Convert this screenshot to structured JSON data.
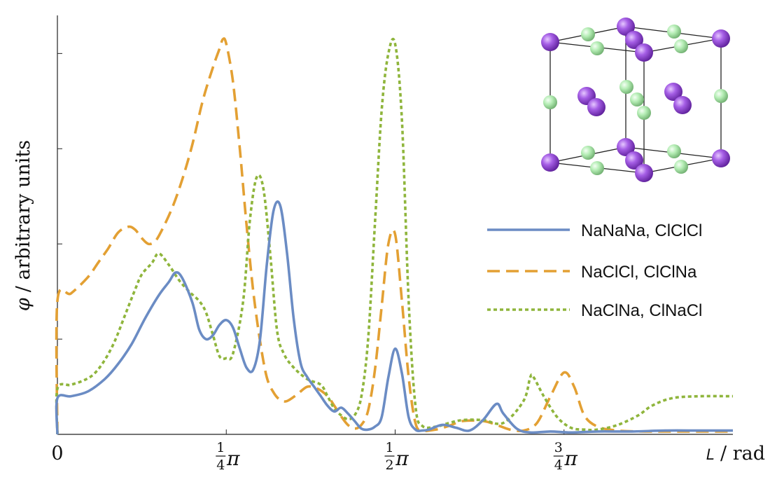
{
  "chart_data": {
    "type": "line",
    "title": "",
    "xlabel": {
      "symbol": "L",
      "unit": "/ rad"
    },
    "ylabel": {
      "symbol": "φ",
      "text": "/ arbitrary units"
    },
    "xlim": [
      0,
      1
    ],
    "ylim": [
      0,
      0.44
    ],
    "x_ticks": [
      {
        "value": 0,
        "whole": "0"
      },
      {
        "value": 0.25,
        "num": "1",
        "den": "4",
        "sym": "π"
      },
      {
        "value": 0.5,
        "num": "1",
        "den": "2",
        "sym": "π"
      },
      {
        "value": 0.75,
        "num": "3",
        "den": "4",
        "sym": "π"
      }
    ],
    "y_ticks": [
      0,
      0.1,
      0.2,
      0.3,
      0.4
    ],
    "grid": false,
    "legend_position": "right",
    "series": [
      {
        "name": "NaNaNa, ClClCl",
        "color": "#6b8cc4",
        "dash": "solid",
        "points": [
          [
            0,
            0.038
          ],
          [
            0.02,
            0.04
          ],
          [
            0.045,
            0.045
          ],
          [
            0.07,
            0.058
          ],
          [
            0.09,
            0.074
          ],
          [
            0.11,
            0.095
          ],
          [
            0.13,
            0.122
          ],
          [
            0.15,
            0.146
          ],
          [
            0.165,
            0.16
          ],
          [
            0.175,
            0.17
          ],
          [
            0.185,
            0.164
          ],
          [
            0.2,
            0.138
          ],
          [
            0.21,
            0.11
          ],
          [
            0.22,
            0.1
          ],
          [
            0.23,
            0.104
          ],
          [
            0.24,
            0.115
          ],
          [
            0.25,
            0.12
          ],
          [
            0.26,
            0.112
          ],
          [
            0.27,
            0.09
          ],
          [
            0.28,
            0.07
          ],
          [
            0.29,
            0.068
          ],
          [
            0.3,
            0.1
          ],
          [
            0.31,
            0.178
          ],
          [
            0.32,
            0.235
          ],
          [
            0.33,
            0.24
          ],
          [
            0.34,
            0.19
          ],
          [
            0.35,
            0.12
          ],
          [
            0.36,
            0.075
          ],
          [
            0.37,
            0.06
          ],
          [
            0.38,
            0.05
          ],
          [
            0.39,
            0.04
          ],
          [
            0.4,
            0.03
          ],
          [
            0.41,
            0.024
          ],
          [
            0.42,
            0.028
          ],
          [
            0.43,
            0.022
          ],
          [
            0.44,
            0.014
          ],
          [
            0.45,
            0.006
          ],
          [
            0.46,
            0.005
          ],
          [
            0.47,
            0.008
          ],
          [
            0.48,
            0.018
          ],
          [
            0.49,
            0.06
          ],
          [
            0.5,
            0.09
          ],
          [
            0.51,
            0.064
          ],
          [
            0.52,
            0.018
          ],
          [
            0.53,
            0.005
          ],
          [
            0.54,
            0.004
          ],
          [
            0.55,
            0.005
          ],
          [
            0.57,
            0.01
          ],
          [
            0.59,
            0.007
          ],
          [
            0.61,
            0.004
          ],
          [
            0.63,
            0.015
          ],
          [
            0.65,
            0.032
          ],
          [
            0.66,
            0.022
          ],
          [
            0.68,
            0.006
          ],
          [
            0.7,
            0.002
          ],
          [
            0.73,
            0.003
          ],
          [
            0.76,
            0.002
          ],
          [
            0.8,
            0.003
          ],
          [
            0.85,
            0.003
          ],
          [
            0.9,
            0.004
          ],
          [
            0.95,
            0.004
          ],
          [
            1.0,
            0.004
          ]
        ]
      },
      {
        "name": "NaClCl, ClClNa",
        "color": "#e3a033",
        "dash": "dashed",
        "points": [
          [
            0,
            0.14
          ],
          [
            0.02,
            0.148
          ],
          [
            0.045,
            0.165
          ],
          [
            0.06,
            0.18
          ],
          [
            0.075,
            0.195
          ],
          [
            0.09,
            0.212
          ],
          [
            0.105,
            0.218
          ],
          [
            0.115,
            0.215
          ],
          [
            0.125,
            0.206
          ],
          [
            0.135,
            0.2
          ],
          [
            0.145,
            0.203
          ],
          [
            0.155,
            0.215
          ],
          [
            0.17,
            0.238
          ],
          [
            0.185,
            0.268
          ],
          [
            0.2,
            0.305
          ],
          [
            0.215,
            0.35
          ],
          [
            0.23,
            0.385
          ],
          [
            0.24,
            0.405
          ],
          [
            0.245,
            0.415
          ],
          [
            0.25,
            0.41
          ],
          [
            0.26,
            0.37
          ],
          [
            0.27,
            0.3
          ],
          [
            0.28,
            0.22
          ],
          [
            0.29,
            0.15
          ],
          [
            0.3,
            0.098
          ],
          [
            0.31,
            0.06
          ],
          [
            0.32,
            0.044
          ],
          [
            0.33,
            0.036
          ],
          [
            0.34,
            0.035
          ],
          [
            0.355,
            0.042
          ],
          [
            0.37,
            0.05
          ],
          [
            0.385,
            0.048
          ],
          [
            0.4,
            0.04
          ],
          [
            0.41,
            0.03
          ],
          [
            0.42,
            0.019
          ],
          [
            0.43,
            0.01
          ],
          [
            0.44,
            0.006
          ],
          [
            0.45,
            0.01
          ],
          [
            0.46,
            0.025
          ],
          [
            0.47,
            0.067
          ],
          [
            0.48,
            0.134
          ],
          [
            0.49,
            0.2
          ],
          [
            0.5,
            0.21
          ],
          [
            0.51,
            0.14
          ],
          [
            0.52,
            0.06
          ],
          [
            0.53,
            0.012
          ],
          [
            0.54,
            0.004
          ],
          [
            0.56,
            0.005
          ],
          [
            0.58,
            0.009
          ],
          [
            0.6,
            0.014
          ],
          [
            0.63,
            0.014
          ],
          [
            0.65,
            0.01
          ],
          [
            0.67,
            0.005
          ],
          [
            0.69,
            0.004
          ],
          [
            0.71,
            0.012
          ],
          [
            0.73,
            0.04
          ],
          [
            0.75,
            0.065
          ],
          [
            0.765,
            0.05
          ],
          [
            0.78,
            0.02
          ],
          [
            0.8,
            0.008
          ],
          [
            0.83,
            0.004
          ],
          [
            0.87,
            0.003
          ],
          [
            0.92,
            0.003
          ],
          [
            1.0,
            0.003
          ]
        ]
      },
      {
        "name": "NaClNa, ClNaCl",
        "color": "#8fb53c",
        "dash": "dotted",
        "points": [
          [
            0,
            0.048
          ],
          [
            0.02,
            0.052
          ],
          [
            0.04,
            0.057
          ],
          [
            0.055,
            0.064
          ],
          [
            0.07,
            0.078
          ],
          [
            0.085,
            0.098
          ],
          [
            0.1,
            0.125
          ],
          [
            0.115,
            0.152
          ],
          [
            0.125,
            0.168
          ],
          [
            0.14,
            0.18
          ],
          [
            0.15,
            0.19
          ],
          [
            0.165,
            0.178
          ],
          [
            0.18,
            0.162
          ],
          [
            0.195,
            0.15
          ],
          [
            0.21,
            0.14
          ],
          [
            0.22,
            0.128
          ],
          [
            0.23,
            0.105
          ],
          [
            0.24,
            0.082
          ],
          [
            0.25,
            0.08
          ],
          [
            0.26,
            0.085
          ],
          [
            0.275,
            0.14
          ],
          [
            0.285,
            0.225
          ],
          [
            0.295,
            0.27
          ],
          [
            0.305,
            0.258
          ],
          [
            0.315,
            0.19
          ],
          [
            0.325,
            0.11
          ],
          [
            0.335,
            0.085
          ],
          [
            0.35,
            0.07
          ],
          [
            0.37,
            0.058
          ],
          [
            0.39,
            0.052
          ],
          [
            0.4,
            0.04
          ],
          [
            0.41,
            0.027
          ],
          [
            0.42,
            0.02
          ],
          [
            0.43,
            0.016
          ],
          [
            0.44,
            0.02
          ],
          [
            0.45,
            0.04
          ],
          [
            0.46,
            0.1
          ],
          [
            0.47,
            0.22
          ],
          [
            0.48,
            0.34
          ],
          [
            0.49,
            0.4
          ],
          [
            0.5,
            0.41
          ],
          [
            0.51,
            0.33
          ],
          [
            0.52,
            0.14
          ],
          [
            0.53,
            0.03
          ],
          [
            0.54,
            0.009
          ],
          [
            0.56,
            0.008
          ],
          [
            0.58,
            0.012
          ],
          [
            0.6,
            0.015
          ],
          [
            0.63,
            0.015
          ],
          [
            0.66,
            0.012
          ],
          [
            0.69,
            0.035
          ],
          [
            0.7,
            0.06
          ],
          [
            0.705,
            0.06
          ],
          [
            0.72,
            0.04
          ],
          [
            0.74,
            0.018
          ],
          [
            0.76,
            0.007
          ],
          [
            0.78,
            0.005
          ],
          [
            0.8,
            0.005
          ],
          [
            0.83,
            0.01
          ],
          [
            0.86,
            0.02
          ],
          [
            0.88,
            0.03
          ],
          [
            0.91,
            0.038
          ],
          [
            0.95,
            0.04
          ],
          [
            1.0,
            0.04
          ]
        ]
      }
    ]
  },
  "inset": {
    "colors": {
      "na": "#9a4fdc",
      "cl": "#a9eaa9",
      "edge": "#222222"
    }
  }
}
